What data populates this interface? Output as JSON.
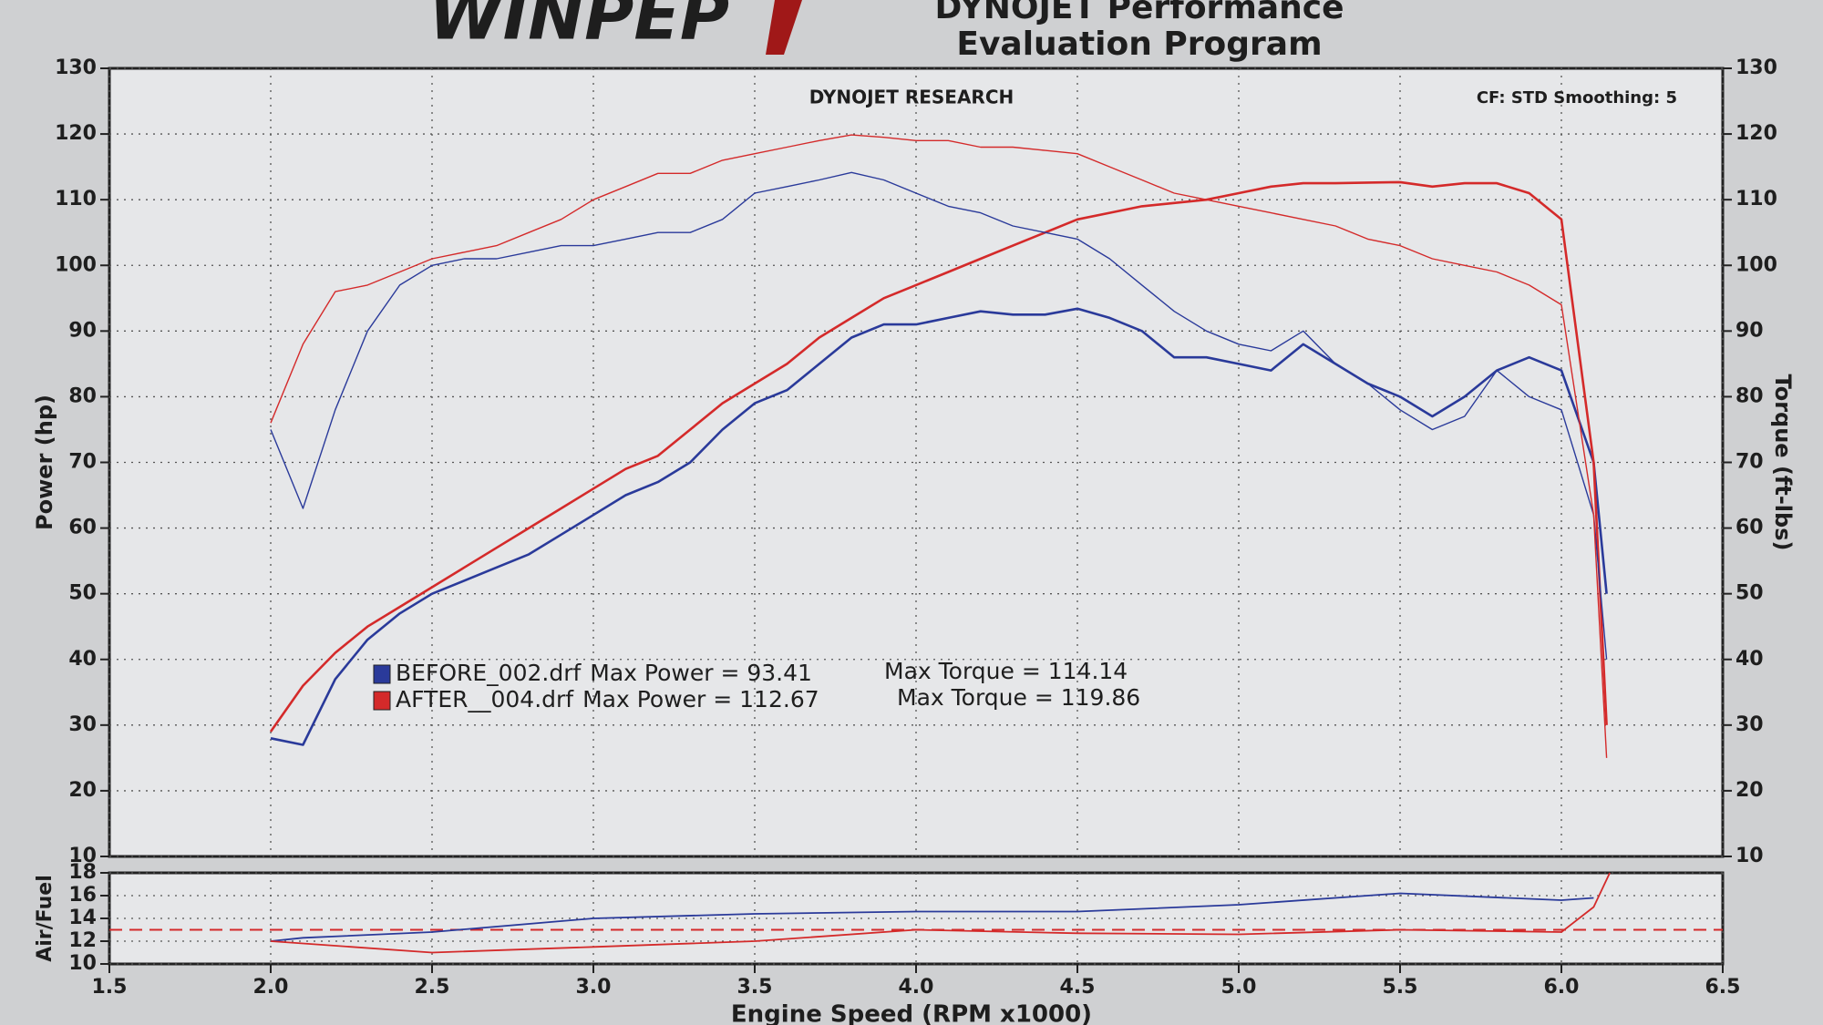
{
  "header": {
    "logo": "WINPEP",
    "title_line1": "DYNOJET Performance",
    "title_line2": "Evaluation Program"
  },
  "chart_data": [
    {
      "type": "line",
      "subtitle": "DYNOJET RESEARCH",
      "annotation": "CF: STD  Smoothing: 5",
      "ylabel": "Power (hp)",
      "y2label": "Torque (ft-lbs)",
      "xlabel": "Engine Speed (RPM x1000)",
      "xlim": [
        1.5,
        6.5
      ],
      "xticks": [
        1.5,
        {
          "value": 2,
          "label": "2.0"
        },
        2.5,
        {
          "value": 3,
          "label": "3.0"
        },
        3.5,
        {
          "value": 4,
          "label": "4.0"
        },
        4.5,
        {
          "value": 5,
          "label": "5.0"
        },
        5.5,
        {
          "value": 6,
          "label": "6.0"
        },
        6.5
      ],
      "ylim": [
        10,
        130
      ],
      "yticks": [
        10,
        20,
        30,
        40,
        50,
        60,
        70,
        80,
        90,
        100,
        110,
        120,
        130
      ],
      "y2lim": [
        10,
        130
      ],
      "y2ticks": [
        10,
        20,
        30,
        40,
        50,
        60,
        70,
        80,
        90,
        100,
        110,
        120,
        130
      ],
      "grid": true,
      "x": [
        2.0,
        2.1,
        2.2,
        2.3,
        2.4,
        2.5,
        2.6,
        2.7,
        2.8,
        2.9,
        3.0,
        3.1,
        3.2,
        3.3,
        3.4,
        3.5,
        3.6,
        3.7,
        3.8,
        3.9,
        4.0,
        4.1,
        4.2,
        4.3,
        4.4,
        4.5,
        4.6,
        4.7,
        4.8,
        4.9,
        5.0,
        5.1,
        5.2,
        5.3,
        5.4,
        5.5,
        5.6,
        5.7,
        5.8,
        5.9,
        6.0,
        6.1,
        6.14
      ],
      "series": [
        {
          "name": "BEFORE_002.drf",
          "color": "#2a3a9a",
          "width": 2.6,
          "values": [
            28,
            27,
            37,
            43,
            47,
            50,
            52,
            54,
            56,
            59,
            62,
            65,
            67,
            70,
            75,
            79,
            81,
            85,
            89,
            91,
            91,
            92,
            93,
            92.5,
            92.5,
            93.41,
            92,
            90,
            86,
            86,
            85,
            84,
            88,
            85,
            82,
            80,
            77,
            80,
            84,
            86,
            84,
            70,
            50
          ]
        },
        {
          "name": "AFTER__004.drf",
          "color": "#d42a2a",
          "width": 2.6,
          "values": [
            29,
            36,
            41,
            45,
            48,
            51,
            54,
            57,
            60,
            63,
            66,
            69,
            71,
            75,
            79,
            82,
            85,
            89,
            92,
            95,
            97,
            99,
            101,
            103,
            105,
            107,
            108,
            109,
            109.5,
            110,
            111,
            112,
            112.5,
            112.5,
            112.6,
            112.67,
            112,
            112.5,
            112.5,
            111,
            107,
            70,
            30
          ]
        },
        {
          "color": "#2a3a9a",
          "width": 1.4,
          "axis": "y2",
          "values": [
            75,
            63,
            78,
            90,
            97,
            100,
            101,
            101,
            102,
            103,
            103,
            104,
            105,
            105,
            107,
            111,
            112,
            113,
            114.14,
            113,
            111,
            109,
            108,
            106,
            105,
            104,
            101,
            97,
            93,
            90,
            88,
            87,
            90,
            85,
            82,
            78,
            75,
            77,
            84,
            80,
            78,
            62,
            40
          ]
        },
        {
          "color": "#d42a2a",
          "width": 1.4,
          "axis": "y2",
          "values": [
            76,
            88,
            96,
            97,
            99,
            101,
            102,
            103,
            105,
            107,
            110,
            112,
            114,
            114,
            116,
            117,
            118,
            119,
            119.86,
            119.5,
            119,
            119,
            118,
            118,
            117.5,
            117,
            115,
            113,
            111,
            110,
            109,
            108,
            107,
            106,
            104,
            103,
            101,
            100,
            99,
            97,
            94,
            62,
            25
          ]
        }
      ],
      "legend_notes": [
        [
          "Max Power = 93.41",
          "Max Torque = 114.14"
        ],
        [
          "Max Power = 112.67",
          "Max Torque = 119.86"
        ]
      ]
    },
    {
      "type": "line",
      "ylabel": "Air/Fuel",
      "xlim": [
        1.5,
        6.5
      ],
      "ylim": [
        10,
        18
      ],
      "yticks": [
        10,
        12,
        14,
        16,
        18
      ],
      "grid": true,
      "x": [
        2.0,
        2.1,
        2.5,
        3.0,
        3.5,
        4.0,
        4.5,
        5.0,
        5.5,
        6.0,
        6.1,
        6.15
      ],
      "series": [
        {
          "color": "#2a3a9a",
          "width": 1.8,
          "values": [
            12,
            12.3,
            12.8,
            14.0,
            14.4,
            14.6,
            14.6,
            15.2,
            16.2,
            15.6,
            15.8,
            null
          ]
        },
        {
          "color": "#d42a2a",
          "width": 1.8,
          "values": [
            12,
            11.8,
            11,
            11.5,
            12,
            13,
            12.7,
            12.6,
            13,
            12.8,
            15,
            18
          ]
        }
      ],
      "reference_line": {
        "value": 13,
        "color": "#d42a2a",
        "dashed": true
      }
    }
  ]
}
